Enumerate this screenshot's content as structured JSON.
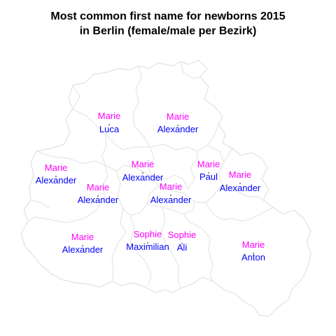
{
  "title": {
    "line1": "Most common first name for newborns 2015",
    "line2": "in Berlin (female/male per Bezirk)"
  },
  "colors": {
    "female": "#ff00ff",
    "male": "#0000ff",
    "border": "#e1e1e1",
    "background": "#ffffff"
  },
  "districts": [
    {
      "female": "Marie",
      "male": "Luca"
    },
    {
      "female": "Marie",
      "male": "Alexander"
    },
    {
      "female": "Marie",
      "male": "Alexander"
    },
    {
      "female": "Marie",
      "male": "Alexander"
    },
    {
      "female": "Marie",
      "male": "Paul"
    },
    {
      "female": "Marie",
      "male": "Alexander"
    },
    {
      "female": "Marie",
      "male": "Alexander"
    },
    {
      "female": "Marie",
      "male": "Alexander"
    },
    {
      "female": "Marie",
      "male": "Alexander"
    },
    {
      "female": "Sophie",
      "male": "Maximilian"
    },
    {
      "female": "Sophie",
      "male": "Ali"
    },
    {
      "female": "Marie",
      "male": "Anton"
    }
  ]
}
